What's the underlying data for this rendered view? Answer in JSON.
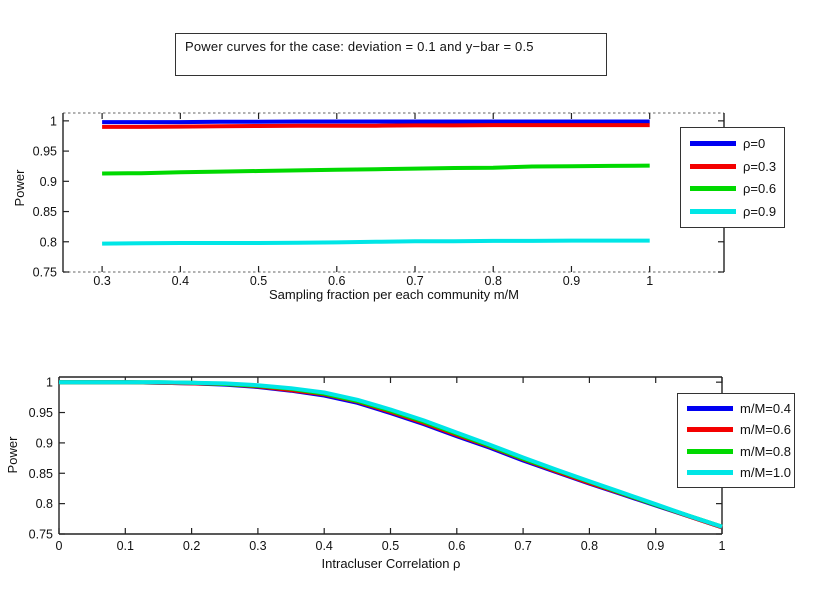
{
  "figure": {
    "title": "Power curves for the case: deviation = 0.1 and y−bar = 0.5",
    "background": "#ffffff"
  },
  "palette": {
    "blue": "#0000f2",
    "red": "#f40000",
    "green": "#00d900",
    "cyan": "#00e6e6",
    "axis": "#222222",
    "axis_dashed": "#999999",
    "text": "#111111"
  },
  "chart_data": [
    {
      "id": "power-vs-sampling-fraction",
      "type": "line",
      "title": "",
      "xlabel": "Sampling fraction per each community m/M",
      "ylabel": "Power",
      "xlim": [
        0.25,
        1.095
      ],
      "ylim": [
        0.75,
        1.013
      ],
      "grid": false,
      "xticks": {
        "values": [
          0.3,
          0.4,
          0.5,
          0.6,
          0.7,
          0.8,
          0.9,
          1.0
        ],
        "labels": [
          "0.3",
          "0.4",
          "0.5",
          "0.6",
          "0.7",
          "0.8",
          "0.9",
          "1"
        ]
      },
      "yticks": {
        "values": [
          0.75,
          0.8,
          0.85,
          0.9,
          0.95,
          1.0
        ],
        "labels": [
          "0.75",
          "0.8",
          "0.85",
          "0.9",
          "0.95",
          "1"
        ]
      },
      "legend": {
        "position": "right-overlapping-axis",
        "entries": [
          "ρ=0",
          "ρ=0.3",
          "ρ=0.6",
          "ρ=0.9"
        ]
      },
      "x": [
        0.3,
        0.35,
        0.4,
        0.45,
        0.5,
        0.55,
        0.6,
        0.65,
        0.7,
        0.75,
        0.8,
        0.85,
        0.9,
        0.95,
        1.0
      ],
      "series": [
        {
          "name": "ρ=0",
          "color": "#0000f2",
          "y": [
            0.998,
            0.998,
            0.998,
            0.9985,
            0.9985,
            0.999,
            0.999,
            0.999,
            0.999,
            0.999,
            0.999,
            0.999,
            0.999,
            0.999,
            0.999
          ]
        },
        {
          "name": "ρ=0.3",
          "color": "#f40000",
          "y": [
            0.99,
            0.99,
            0.9905,
            0.991,
            0.9915,
            0.992,
            0.992,
            0.992,
            0.9925,
            0.9925,
            0.993,
            0.993,
            0.993,
            0.993,
            0.993
          ]
        },
        {
          "name": "ρ=0.6",
          "color": "#00d900",
          "y": [
            0.913,
            0.9135,
            0.915,
            0.916,
            0.917,
            0.918,
            0.919,
            0.92,
            0.921,
            0.922,
            0.9225,
            0.9245,
            0.925,
            0.9255,
            0.926
          ]
        },
        {
          "name": "ρ=0.9",
          "color": "#00e6e6",
          "y": [
            0.797,
            0.7975,
            0.798,
            0.798,
            0.798,
            0.7985,
            0.799,
            0.8,
            0.801,
            0.801,
            0.8015,
            0.8015,
            0.802,
            0.802,
            0.802
          ]
        }
      ]
    },
    {
      "id": "power-vs-intracluster-correlation",
      "type": "line",
      "title": "",
      "xlabel": "Intracluser Correlation ρ",
      "ylabel": "Power",
      "xlim": [
        0,
        1
      ],
      "ylim": [
        0.75,
        1.0085
      ],
      "grid": false,
      "xticks": {
        "values": [
          0,
          0.1,
          0.2,
          0.3,
          0.4,
          0.5,
          0.6,
          0.7,
          0.8,
          0.9,
          1.0
        ],
        "labels": [
          "0",
          "0.1",
          "0.2",
          "0.3",
          "0.4",
          "0.5",
          "0.6",
          "0.7",
          "0.8",
          "0.9",
          "1"
        ]
      },
      "yticks": {
        "values": [
          0.75,
          0.8,
          0.85,
          0.9,
          0.95,
          1.0
        ],
        "labels": [
          "0.75",
          "0.8",
          "0.85",
          "0.9",
          "0.95",
          "1"
        ]
      },
      "legend": {
        "position": "inside-top-right-overlapping-axis",
        "entries": [
          "m/M=0.4",
          "m/M=0.6",
          "m/M=0.8",
          "m/M=1.0"
        ]
      },
      "x": [
        0,
        0.05,
        0.1,
        0.15,
        0.2,
        0.25,
        0.3,
        0.35,
        0.4,
        0.45,
        0.5,
        0.55,
        0.6,
        0.65,
        0.7,
        0.75,
        0.8,
        0.85,
        0.9,
        0.95,
        1.0
      ],
      "series": [
        {
          "name": "m/M=0.4",
          "color": "#0000f2",
          "y": [
            1.0,
            1.0,
            1.0,
            0.999,
            0.998,
            0.996,
            0.992,
            0.986,
            0.978,
            0.966,
            0.949,
            0.931,
            0.911,
            0.892,
            0.871,
            0.852,
            0.833,
            0.815,
            0.797,
            0.779,
            0.761
          ]
        },
        {
          "name": "m/M=0.6",
          "color": "#f40000",
          "y": [
            1.0,
            1.0,
            1.0,
            0.999,
            0.998,
            0.997,
            0.993,
            0.987,
            0.98,
            0.968,
            0.951,
            0.933,
            0.913,
            0.894,
            0.873,
            0.853,
            0.834,
            0.816,
            0.798,
            0.779,
            0.761
          ]
        },
        {
          "name": "m/M=0.8",
          "color": "#00d900",
          "y": [
            1.0,
            1.0,
            1.0,
            1.0,
            0.999,
            0.997,
            0.994,
            0.989,
            0.981,
            0.969,
            0.953,
            0.935,
            0.915,
            0.895,
            0.874,
            0.855,
            0.836,
            0.817,
            0.798,
            0.78,
            0.762
          ]
        },
        {
          "name": "m/M=1.0",
          "color": "#00e6e6",
          "y": [
            1.0,
            1.0,
            1.0,
            1.0,
            0.999,
            0.998,
            0.995,
            0.99,
            0.983,
            0.971,
            0.955,
            0.937,
            0.917,
            0.897,
            0.876,
            0.856,
            0.837,
            0.818,
            0.799,
            0.78,
            0.762
          ]
        }
      ]
    }
  ]
}
